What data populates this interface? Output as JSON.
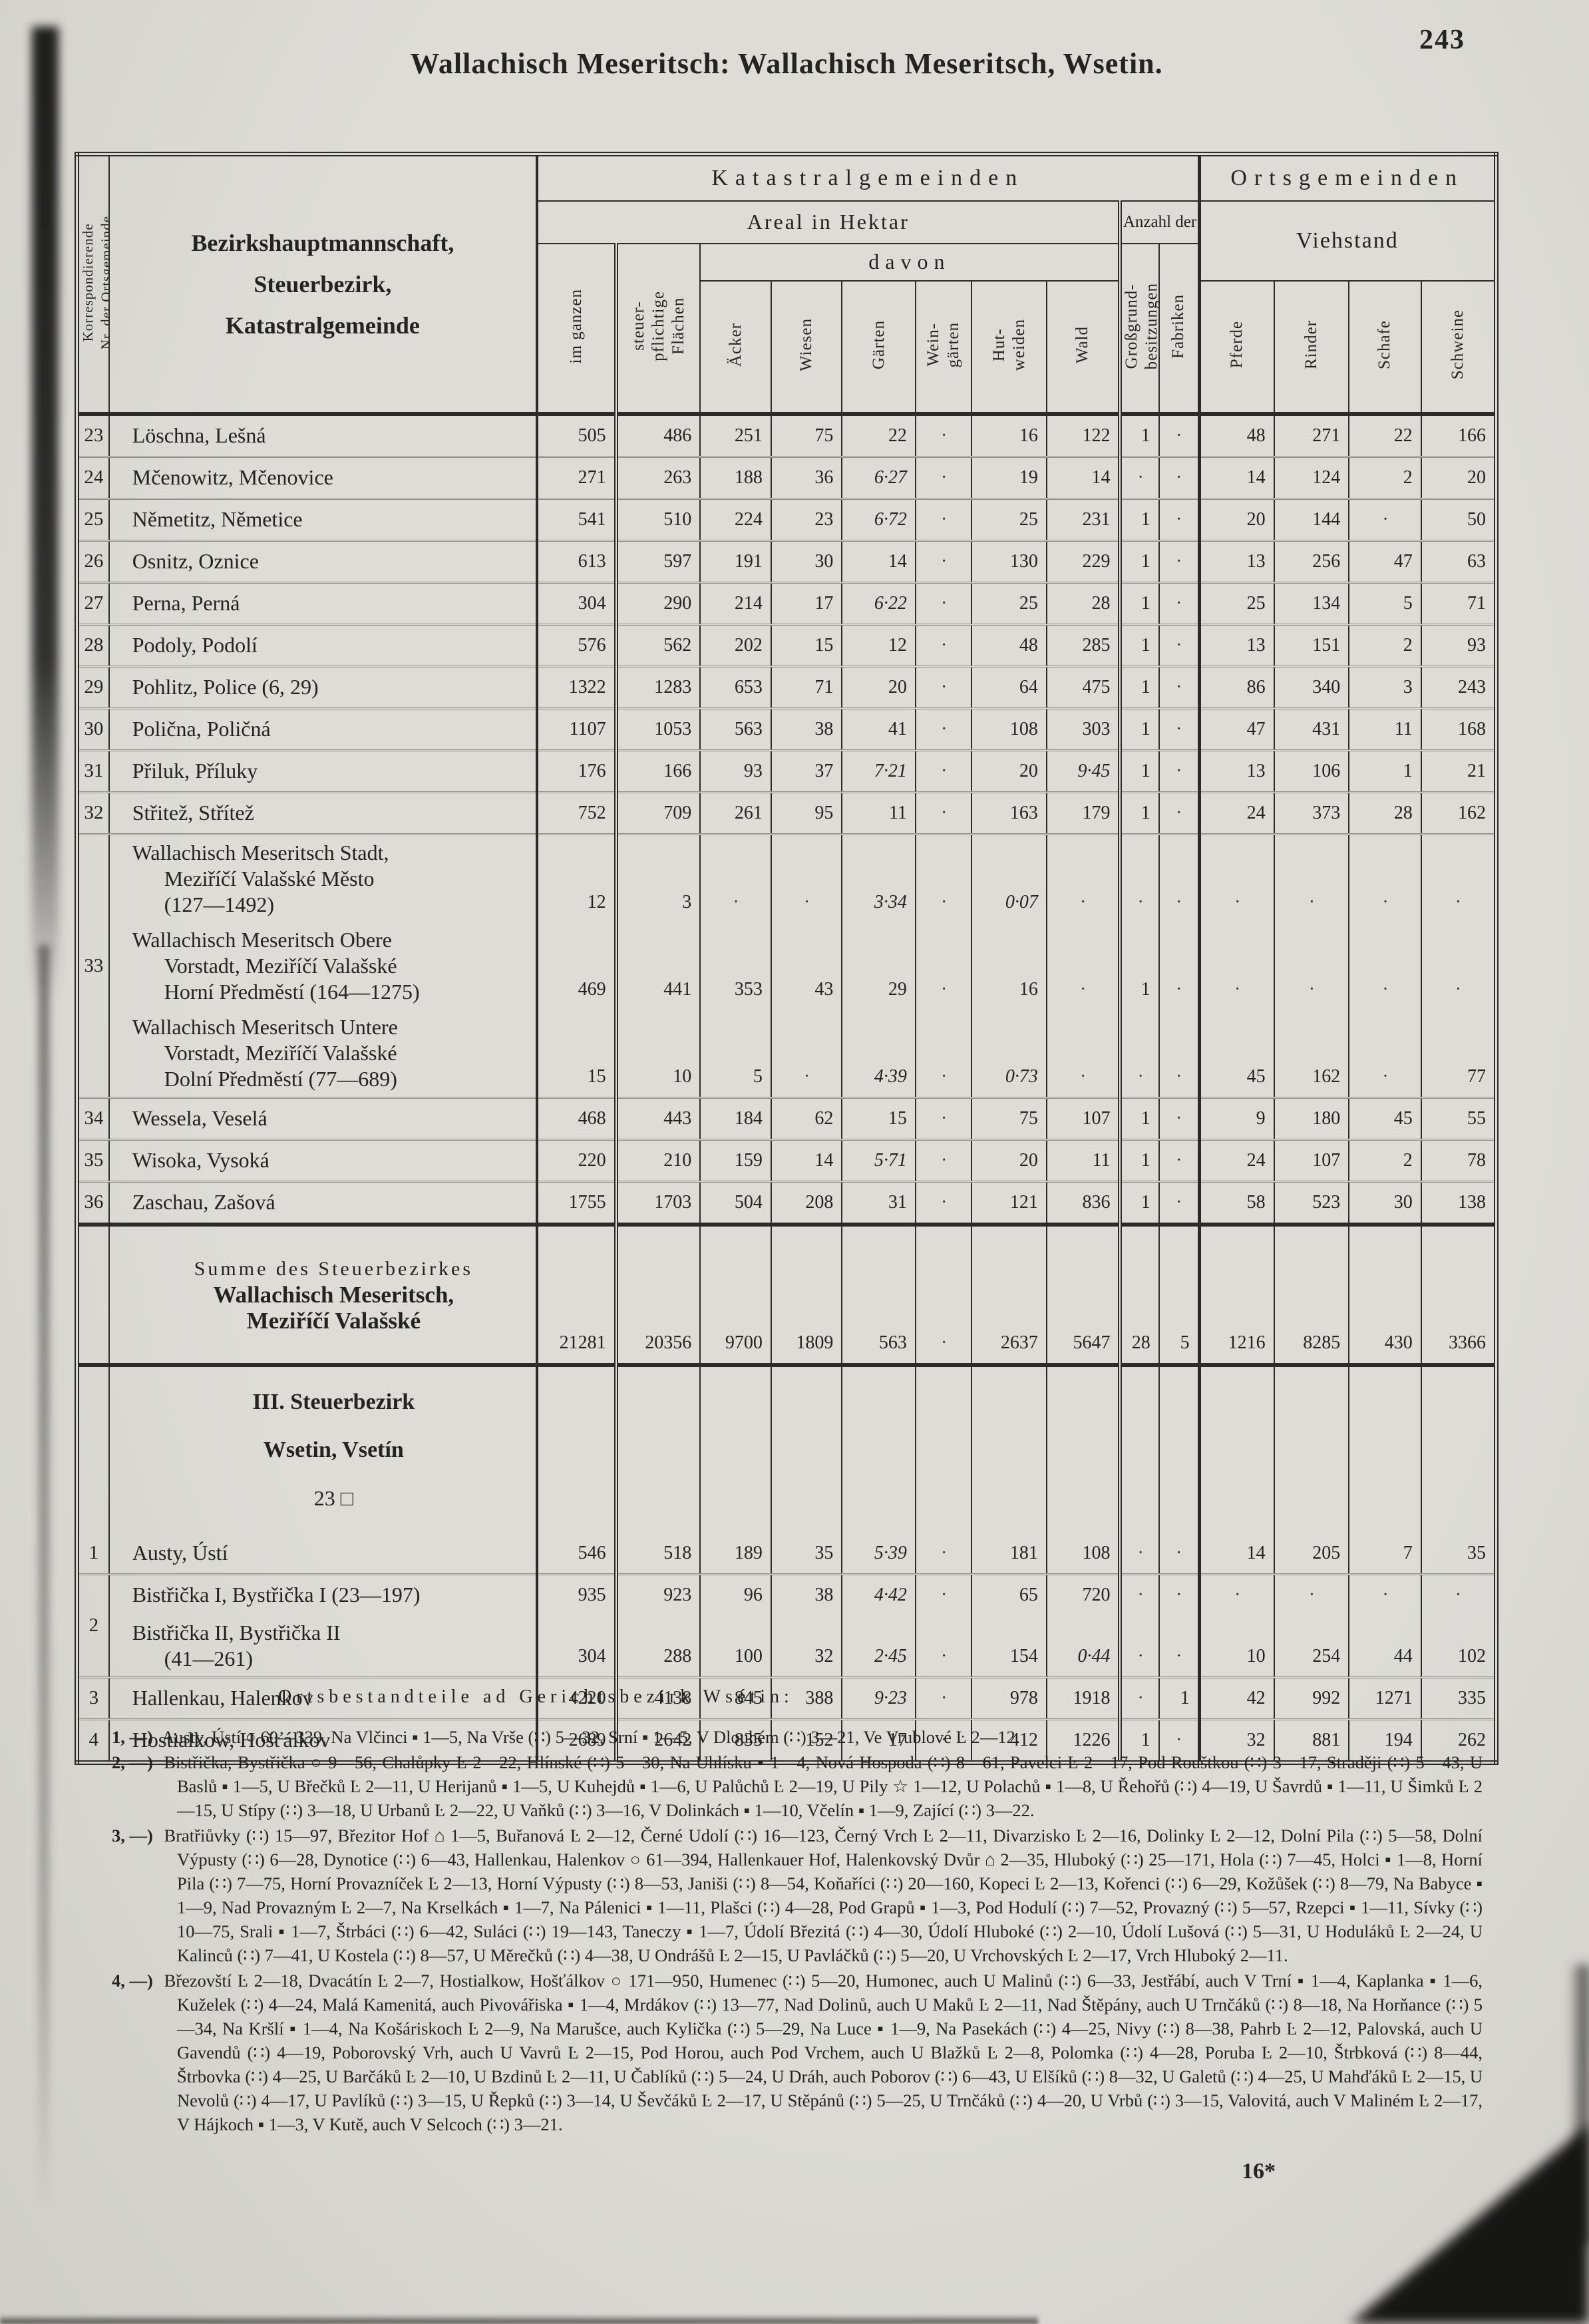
{
  "page": {
    "number": "243",
    "title": "Wallachisch Meseritsch: Wallachisch Meseritsch, Wsetin.",
    "footer_mark": "16*"
  },
  "table": {
    "corner_header": "Korrespondierende\nNr. der Ortsgemeinde",
    "name_header_lines": [
      "Bezirkshauptmannschaft,",
      "Steuerbezirk,",
      "Katastralgemeinde"
    ],
    "group_katastral": "Katastralgemeinden",
    "group_orts": "Ortsgemeinden",
    "areal_header": "Areal in Hektar",
    "anzahl_header": "Anzahl der",
    "davon_header": "davon",
    "viehstand_header": "Viehstand",
    "col_headers": [
      "im ganzen",
      "steuer-\npflichtige\nFlächen",
      "Äcker",
      "Wiesen",
      "Gärten",
      "Wein-\ngärten",
      "Hut-\nweiden",
      "Wald",
      "Großgrund-\nbesitzungen",
      "Fabriken",
      "Pferde",
      "Rinder",
      "Schafe",
      "Schweine"
    ]
  },
  "rows": [
    {
      "type": "data",
      "nr": "23",
      "sep": "none",
      "entries": [
        {
          "name": [
            "Löschna, Lešná"
          ],
          "values": [
            "505",
            "486",
            "251",
            "75",
            "22",
            "·",
            "16",
            "122",
            "1",
            "·",
            "48",
            "271",
            "22",
            "166"
          ]
        }
      ]
    },
    {
      "type": "data",
      "nr": "24",
      "sep": "thin",
      "entries": [
        {
          "name": [
            "Mčenowitz, Mčenovice"
          ],
          "values": [
            "271",
            "263",
            "188",
            "36",
            "6·27",
            "·",
            "19",
            "14",
            "·",
            "·",
            "14",
            "124",
            "2",
            "20"
          ]
        }
      ]
    },
    {
      "type": "data",
      "nr": "25",
      "sep": "thin",
      "entries": [
        {
          "name": [
            "Němetitz, Němetice"
          ],
          "values": [
            "541",
            "510",
            "224",
            "23",
            "6·72",
            "·",
            "25",
            "231",
            "1",
            "·",
            "20",
            "144",
            "·",
            "50"
          ]
        }
      ]
    },
    {
      "type": "data",
      "nr": "26",
      "sep": "thin",
      "entries": [
        {
          "name": [
            "Osnitz, Oznice"
          ],
          "values": [
            "613",
            "597",
            "191",
            "30",
            "14",
            "·",
            "130",
            "229",
            "1",
            "·",
            "13",
            "256",
            "47",
            "63"
          ]
        }
      ]
    },
    {
      "type": "data",
      "nr": "27",
      "sep": "thin",
      "entries": [
        {
          "name": [
            "Perna, Perná"
          ],
          "values": [
            "304",
            "290",
            "214",
            "17",
            "6·22",
            "·",
            "25",
            "28",
            "1",
            "·",
            "25",
            "134",
            "5",
            "71"
          ]
        }
      ]
    },
    {
      "type": "data",
      "nr": "28",
      "sep": "thin",
      "entries": [
        {
          "name": [
            "Podoly, Podolí"
          ],
          "values": [
            "576",
            "562",
            "202",
            "15",
            "12",
            "·",
            "48",
            "285",
            "1",
            "·",
            "13",
            "151",
            "2",
            "93"
          ]
        }
      ]
    },
    {
      "type": "data",
      "nr": "29",
      "sep": "thin",
      "entries": [
        {
          "name": [
            "Pohlitz, Police (6, 29)"
          ],
          "values": [
            "1322",
            "1283",
            "653",
            "71",
            "20",
            "·",
            "64",
            "475",
            "1",
            "·",
            "86",
            "340",
            "3",
            "243"
          ]
        }
      ]
    },
    {
      "type": "data",
      "nr": "30",
      "sep": "thin",
      "entries": [
        {
          "name": [
            "Polična, Poličná"
          ],
          "values": [
            "1107",
            "1053",
            "563",
            "38",
            "41",
            "·",
            "108",
            "303",
            "1",
            "·",
            "47",
            "431",
            "11",
            "168"
          ]
        }
      ]
    },
    {
      "type": "data",
      "nr": "31",
      "sep": "thin",
      "entries": [
        {
          "name": [
            "Přiluk, Příluky"
          ],
          "values": [
            "176",
            "166",
            "93",
            "37",
            "7·21",
            "·",
            "20",
            "9·45",
            "1",
            "·",
            "13",
            "106",
            "1",
            "21"
          ]
        }
      ]
    },
    {
      "type": "data",
      "nr": "32",
      "sep": "thin",
      "entries": [
        {
          "name": [
            "Střitež, Střítež"
          ],
          "values": [
            "752",
            "709",
            "261",
            "95",
            "11",
            "·",
            "163",
            "179",
            "1",
            "·",
            "24",
            "373",
            "28",
            "162"
          ]
        }
      ]
    },
    {
      "type": "data",
      "nr": "33",
      "sep": "thin",
      "entries": [
        {
          "name": [
            "Wallachisch Meseritsch Stadt,",
            "Meziříčí Valašské Město",
            "(127—1492)"
          ],
          "values": [
            "12",
            "3",
            "·",
            "·",
            "3·34",
            "·",
            "0·07",
            "·",
            "·",
            "·",
            "·",
            "·",
            "·",
            "·"
          ]
        },
        {
          "name": [
            "Wallachisch Meseritsch Obere",
            "Vorstadt, Meziříčí Valašské",
            "Horní Předměstí (164—1275)"
          ],
          "values": [
            "469",
            "441",
            "353",
            "43",
            "29",
            "·",
            "16",
            "·",
            "1",
            "·",
            "·",
            "·",
            "·",
            "·"
          ]
        },
        {
          "name": [
            "Wallachisch Meseritsch Untere",
            "Vorstadt, Meziříčí Valašské",
            "Dolní Předměstí (77—689)"
          ],
          "values": [
            "15",
            "10",
            "5",
            "·",
            "4·39",
            "·",
            "0·73",
            "·",
            "·",
            "·",
            "45",
            "162",
            "·",
            "77"
          ]
        }
      ]
    },
    {
      "type": "data",
      "nr": "34",
      "sep": "thin",
      "entries": [
        {
          "name": [
            "Wessela, Veselá"
          ],
          "values": [
            "468",
            "443",
            "184",
            "62",
            "15",
            "·",
            "75",
            "107",
            "1",
            "·",
            "9",
            "180",
            "45",
            "55"
          ]
        }
      ]
    },
    {
      "type": "data",
      "nr": "35",
      "sep": "thin",
      "entries": [
        {
          "name": [
            "Wisoka, Vysoká"
          ],
          "values": [
            "220",
            "210",
            "159",
            "14",
            "5·71",
            "·",
            "20",
            "11",
            "1",
            "·",
            "24",
            "107",
            "2",
            "78"
          ]
        }
      ]
    },
    {
      "type": "data",
      "nr": "36",
      "sep": "thin",
      "entries": [
        {
          "name": [
            "Zaschau, Zašová"
          ],
          "values": [
            "1755",
            "1703",
            "504",
            "208",
            "31",
            "·",
            "121",
            "836",
            "1",
            "·",
            "58",
            "523",
            "30",
            "138"
          ]
        }
      ]
    },
    {
      "type": "sum",
      "nr": "",
      "sep": "heavy",
      "heavy_bottom": true,
      "entries": [
        {
          "name": [
            "Summe des Steuerbezirkes",
            "Wallachisch Meseritsch,",
            "Meziříčí Valašské"
          ],
          "values": [
            "21281",
            "20356",
            "9700",
            "1809",
            "563",
            "·",
            "2637",
            "5647",
            "28",
            "5",
            "1216",
            "8285",
            "430",
            "3366"
          ]
        }
      ]
    },
    {
      "type": "section",
      "sep": "none",
      "lines": [
        "III. Steuerbezirk",
        "Wsetin, Vsetín",
        "23 □"
      ]
    },
    {
      "type": "data",
      "nr": "1",
      "sep": "none",
      "entries": [
        {
          "name": [
            "Austy, Ústí"
          ],
          "values": [
            "546",
            "518",
            "189",
            "35",
            "5·39",
            "·",
            "181",
            "108",
            "·",
            "·",
            "14",
            "205",
            "7",
            "35"
          ]
        }
      ]
    },
    {
      "type": "data",
      "nr": "2",
      "sep": "thin",
      "entries": [
        {
          "name": [
            "Bistřička I, Bystřička I (23—197)"
          ],
          "values": [
            "935",
            "923",
            "96",
            "38",
            "4·42",
            "·",
            "65",
            "720",
            "·",
            "·",
            "·",
            "·",
            "·",
            "·"
          ]
        },
        {
          "name": [
            "Bistřička II, Bystřička II",
            "(41—261)"
          ],
          "values": [
            "304",
            "288",
            "100",
            "32",
            "2·45",
            "·",
            "154",
            "0·44",
            "·",
            "·",
            "10",
            "254",
            "44",
            "102"
          ]
        }
      ]
    },
    {
      "type": "data",
      "nr": "3",
      "sep": "thin",
      "entries": [
        {
          "name": [
            "Hallenkau, Halenkov"
          ],
          "values": [
            "4220",
            "4138",
            "845",
            "388",
            "9·23",
            "·",
            "978",
            "1918",
            "·",
            "1",
            "42",
            "992",
            "1271",
            "335"
          ]
        }
      ]
    },
    {
      "type": "data",
      "nr": "4",
      "sep": "thin",
      "entries": [
        {
          "name": [
            "Hostialkow, Hošťálkov"
          ],
          "values": [
            "2689",
            "2642",
            "835",
            "152",
            "17",
            "·",
            "412",
            "1226",
            "1",
            "·",
            "32",
            "881",
            "194",
            "262"
          ]
        }
      ]
    }
  ],
  "footnotes": {
    "heading": "Ortsbestandteile ad Gerichtsbezirk Wsétin:",
    "items": [
      {
        "label": "1, —)",
        "text": "Austy, Ústí ○ 60—339, Na Vlčinci ▪ 1—5, Na Vrše (∷) 5—32, Srní ▪ 1—5, V Dlouhém (∷) 3—21, Ve Vrublové Ŀ 2—12."
      },
      {
        "label": "2, —)",
        "text": "Bistřička, Bystřička ○ 9—56, Chalůpky Ŀ 2—22, Hlínské (∷) 5—30, Na Uhlísku ▪ 1—4, Nová Hospoda (∷) 8—61, Pavelci Ŀ 2—17, Pod Rouštkou (∷) 3—17, Straději (∷) 5—43, U Baslů ▪ 1—5, U Břečků Ŀ 2—11, U Herijanů ▪ 1—5, U Kuhejdů ▪ 1—6, U Palůchů Ŀ 2—19, U Pily ☆ 1—12, U Polachů ▪ 1—8, U Řehořů (∷) 4—19, U Šavrdů ▪ 1—11, U Šimků Ŀ 2—15, U Stípy (∷) 3—18, U Urbanů Ŀ 2—22, U Vaňků (∷) 3—16, V Dolinkách ▪ 1—10, Včelín ▪ 1—9, Zající (∷) 3—22."
      },
      {
        "label": "3, —)",
        "text": "Bratřiůvky (∷) 15—97, Březitor Hof ⌂ 1—5, Buřanová Ŀ 2—12, Černé Udolí (∷) 16—123, Černý Vrch Ŀ 2—11, Divarzisko Ŀ 2—16, Dolinky Ŀ 2—12, Dolní Pila (∷) 5—58, Dolní Výpusty (∷) 6—28, Dynotice (∷) 6—43, Hallenkau, Halenkov ○ 61—394, Hallenkauer Hof, Halenkovský Dvůr ⌂ 2—35, Hluboký (∷) 25—171, Hola (∷) 7—45, Holci ▪ 1—8, Horní Pila (∷) 7—75, Horní Provazníček Ŀ 2—13, Horní Výpusty (∷) 8—53, Janiši (∷) 8—54, Koňaříci (∷) 20—160, Kopeci Ŀ 2—13, Kořenci (∷) 6—29, Kožůšek (∷) 8—79, Na Babyce ▪ 1—9, Nad Provazným Ŀ 2—7, Na Krselkách ▪ 1—7, Na Pálenici ▪ 1—11, Plašci (∷) 4—28, Pod Grapů ▪ 1—3, Pod Hodulí (∷) 7—52, Provazný (∷) 5—57, Rzepci ▪ 1—11, Sívky (∷) 10—75, Srali ▪ 1—7, Štrbáci (∷) 6—42, Suláci (∷) 19—143, Taneczy ▪ 1—7, Údolí Březitá (∷) 4—30, Údolí Hluboké (∷) 2—10, Údolí Lušová (∷) 5—31, U Hoduláků Ŀ 2—24, U Kalinců (∷) 7—41, U Kostela (∷) 8—57, U Měrečků (∷) 4—38, U Ondrášů Ŀ 2—15, U Pavláčků (∷) 5—20, U Vrchovských Ŀ 2—17, Vrch Hluboký 2—11."
      },
      {
        "label": "4, —)",
        "text": "Březovští Ŀ 2—18, Dvacátín Ŀ 2—7, Hostialkow, Hošťálkov ○ 171—950, Humenec (∷) 5—20, Humonec, auch U Malinů (∷) 6—33, Jestřábí, auch V Trní ▪ 1—4, Kaplanka ▪ 1—6, Kuželek (∷) 4—24, Malá Kamenitá, auch Pivovářiska ▪ 1—4, Mrdákov (∷) 13—77, Nad Dolinů, auch U Maků Ŀ 2—11, Nad Štěpány, auch U Trnčáků (∷) 8—18, Na Horňance (∷) 5—34, Na Kršlí ▪ 1—4, Na Košáriskoch Ŀ 2—9, Na Marušce, auch Kylička (∷) 5—29, Na Luce ▪ 1—9, Na Pasekách (∷) 4—25, Nivy (∷) 8—38, Pahrb Ŀ 2—12, Palovská, auch U Gavendů (∷) 4—19, Poborovský Vrh, auch U Vavrů Ŀ 2—15, Pod Horou, auch Pod Vrchem, auch U Blažků Ŀ 2—8, Polomka (∷) 4—28, Poruba Ŀ 2—10, Štrbková (∷) 8—44, Štrbovka (∷) 4—25, U Barčáků Ŀ 2—10, U Bzdinů Ŀ 2—11, U Čablíků (∷) 5—24, U Dráh, auch Poborov (∷) 6—43, U Elšíků (∷) 8—32, U Galetů (∷) 4—25, U Mahďáků Ŀ 2—15, U Nevolů (∷) 4—17, U Pavlíků (∷) 3—15, U Řepků (∷) 3—14, U Ševčáků Ŀ 2—17, U Stěpánů (∷) 5—25, U Trnčáků (∷) 4—20, U Vrbů (∷) 3—15, Valovitá, auch V Maliném Ŀ 2—17, V Hájkoch ▪ 1—3, V Kutě, auch V Selcoch (∷) 3—21."
      }
    ]
  }
}
